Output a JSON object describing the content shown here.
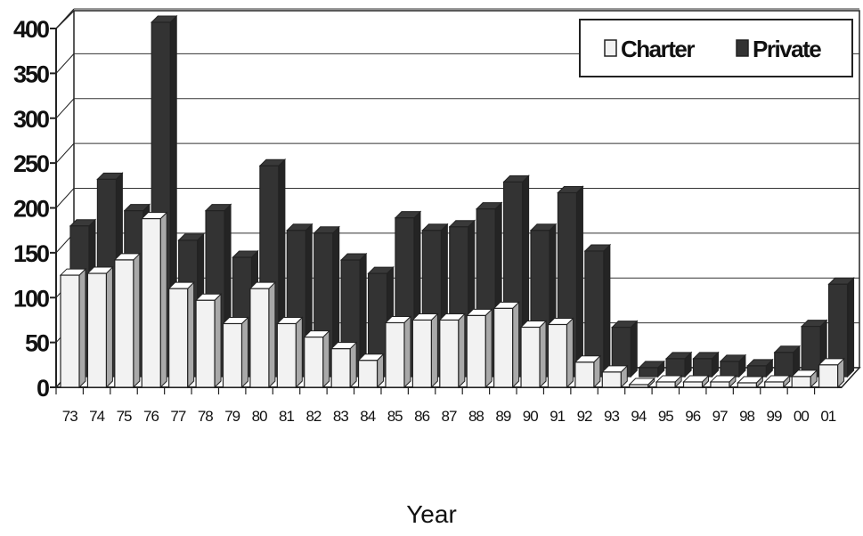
{
  "chart_data": {
    "type": "bar",
    "title": "",
    "xlabel": "Year",
    "ylabel": "",
    "ylim": [
      0,
      400
    ],
    "yticks": [
      0,
      50,
      100,
      150,
      200,
      250,
      300,
      350,
      400
    ],
    "grid": true,
    "legend_position": "top-right",
    "categories": [
      "73",
      "74",
      "75",
      "76",
      "77",
      "78",
      "79",
      "80",
      "81",
      "82",
      "83",
      "84",
      "85",
      "86",
      "87",
      "88",
      "89",
      "90",
      "91",
      "92",
      "93",
      "94",
      "95",
      "96",
      "97",
      "98",
      "99",
      "00",
      "01"
    ],
    "series": [
      {
        "name": "Charter",
        "color": "#f2f2f2",
        "values": [
          125,
          127,
          142,
          188,
          110,
          97,
          71,
          110,
          71,
          56,
          43,
          30,
          72,
          75,
          75,
          80,
          88,
          67,
          70,
          28,
          17,
          3,
          6,
          6,
          6,
          5,
          6,
          12,
          25
        ]
      },
      {
        "name": "Private",
        "color": "#333333",
        "values": [
          168,
          220,
          185,
          395,
          152,
          185,
          133,
          235,
          163,
          160,
          130,
          115,
          177,
          163,
          167,
          187,
          217,
          163,
          205,
          140,
          55,
          10,
          20,
          20,
          17,
          12,
          27,
          56,
          103
        ]
      }
    ]
  }
}
